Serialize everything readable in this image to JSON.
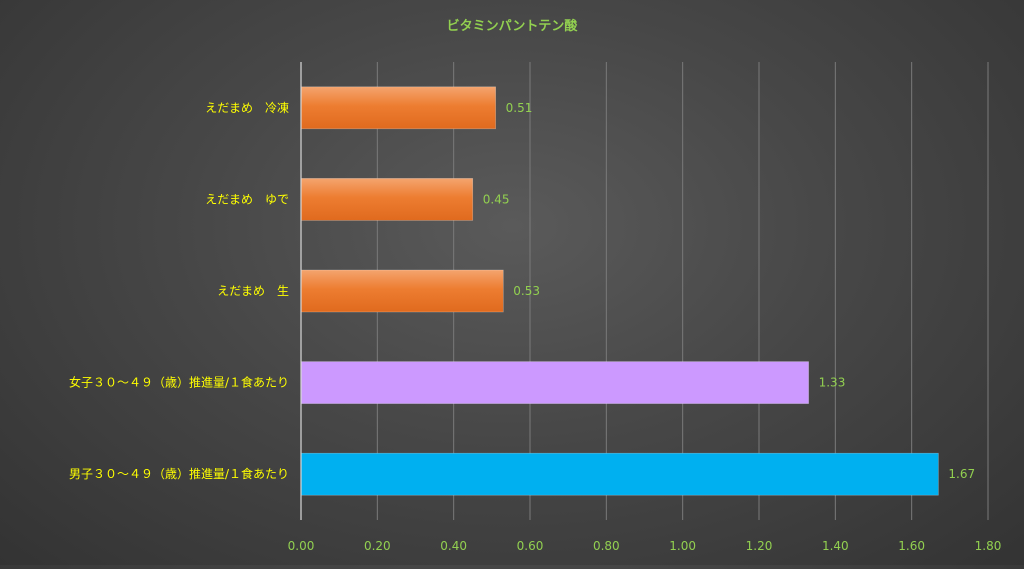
{
  "chart_data": {
    "type": "bar",
    "orientation": "horizontal",
    "title": "ビタミンパントテン酸",
    "xlabel": "",
    "ylabel": "",
    "categories": [
      "えだまめ　冷凍",
      "えだまめ　ゆで",
      "えだまめ　生",
      "女子３０～４９（歳）推進量/１食あたり",
      "男子３０～４９（歳）推進量/１食あたり"
    ],
    "values": [
      0.51,
      0.45,
      0.53,
      1.33,
      1.67
    ],
    "value_labels": [
      "0.51",
      "0.45",
      "0.53",
      "1.33",
      "1.67"
    ],
    "bar_colors": [
      "#ed7d31",
      "#ed7d31",
      "#ed7d31",
      "#cc99ff",
      "#00b0f0"
    ],
    "xlim": [
      0,
      1.8
    ],
    "x_ticks": [
      "0.00",
      "0.20",
      "0.40",
      "0.60",
      "0.80",
      "1.00",
      "1.20",
      "1.40",
      "1.60",
      "1.80"
    ],
    "x_tick_values": [
      0,
      0.2,
      0.4,
      0.6,
      0.8,
      1.0,
      1.2,
      1.4,
      1.6,
      1.8
    ],
    "grid": true,
    "legend": "none"
  }
}
